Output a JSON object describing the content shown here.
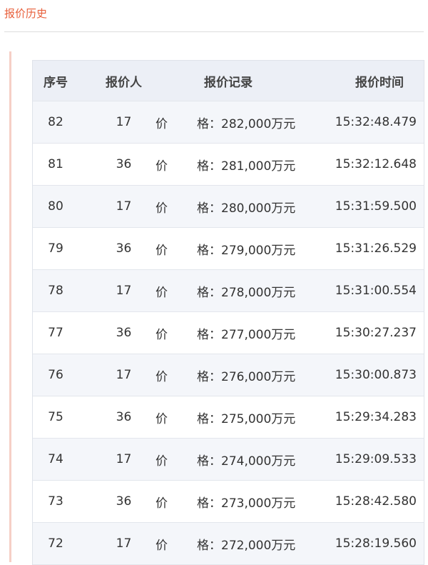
{
  "title": "报价历史",
  "headers": [
    "序号",
    "报价人",
    "报价记录",
    "报价时间"
  ],
  "label_parts": [
    "价",
    "格："
  ],
  "rows": [
    {
      "no": "82",
      "bidder": "17",
      "price": "282,000万元",
      "time": "15:32:48.479"
    },
    {
      "no": "81",
      "bidder": "36",
      "price": "281,000万元",
      "time": "15:32:12.648"
    },
    {
      "no": "80",
      "bidder": "17",
      "price": "280,000万元",
      "time": "15:31:59.500"
    },
    {
      "no": "79",
      "bidder": "36",
      "price": "279,000万元",
      "time": "15:31:26.529"
    },
    {
      "no": "78",
      "bidder": "17",
      "price": "278,000万元",
      "time": "15:31:00.554"
    },
    {
      "no": "77",
      "bidder": "36",
      "price": "277,000万元",
      "time": "15:30:27.237"
    },
    {
      "no": "76",
      "bidder": "17",
      "price": "276,000万元",
      "time": "15:30:00.873"
    },
    {
      "no": "75",
      "bidder": "36",
      "price": "275,000万元",
      "time": "15:29:34.283"
    },
    {
      "no": "74",
      "bidder": "17",
      "price": "274,000万元",
      "time": "15:29:09.533"
    },
    {
      "no": "73",
      "bidder": "36",
      "price": "273,000万元",
      "time": "15:28:42.580"
    },
    {
      "no": "72",
      "bidder": "17",
      "price": "272,000万元",
      "time": "15:28:19.560"
    }
  ]
}
